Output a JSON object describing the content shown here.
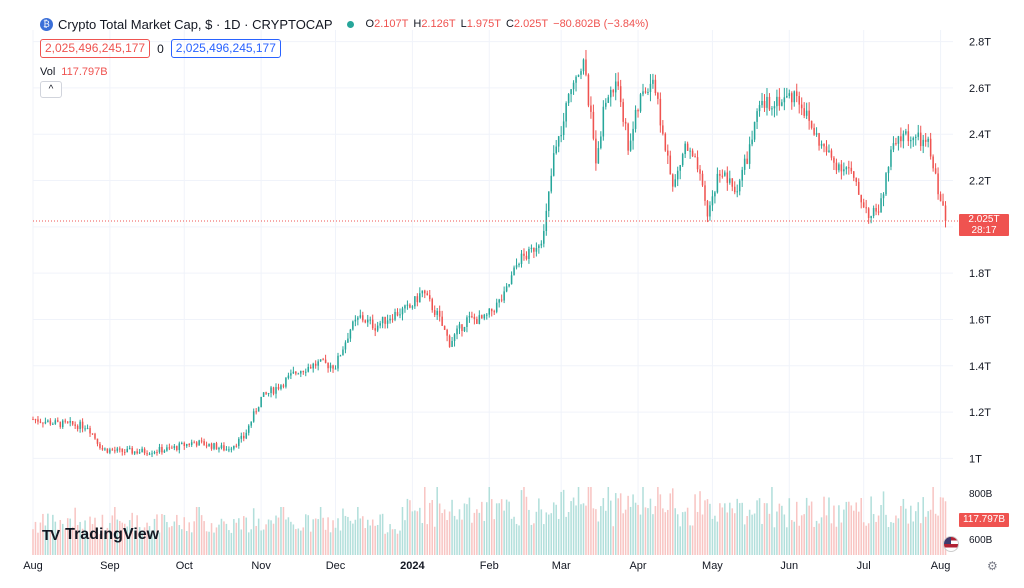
{
  "header": {
    "icon": "crypto-coin-icon",
    "title": "Crypto Total Market Cap, $ · 1D · CRYPTOCAP",
    "ohlc": [
      {
        "k": "O",
        "v": "2.107T"
      },
      {
        "k": "H",
        "v": "2.126T"
      },
      {
        "k": "L",
        "v": "1.975T"
      },
      {
        "k": "C",
        "v": "2.025T"
      },
      {
        "k": "",
        "v": "−80.802B (−3.84%)"
      }
    ],
    "box_left": "2,025,496,245,177",
    "box_mid": "0",
    "box_right": "2,025,496,245,177",
    "vol_label": "Vol",
    "vol_value": "117.797B",
    "collapse_icon": "^"
  },
  "branding": {
    "logo_mark": "TV",
    "logo_text": "TradingView"
  },
  "price_tag": {
    "price": "2.025T",
    "countdown": "28:17"
  },
  "volume_tag": "117.797B",
  "colors": {
    "up": "#26a69a",
    "down": "#ef5350",
    "grid": "#f0f3fa",
    "axis_text": "#131722",
    "last_line": "#ef5350"
  },
  "chart_data": {
    "type": "candlestick",
    "y_axis": {
      "ticks": [
        1.2,
        1.4,
        1.6,
        1.8,
        2.0,
        2.2,
        2.4,
        2.6,
        2.8
      ],
      "labels": {
        "1.0": "1T",
        "1.2": "1.2T",
        "1.4": "1.4T",
        "1.6": "1.6T",
        "1.8": "1.8T",
        "2.2": "2.2T",
        "2.4": "2.4T",
        "2.6": "2.6T",
        "2.8": "2.8T"
      },
      "range": [
        0.95,
        2.85
      ],
      "unit": "T"
    },
    "y_labels": [
      "1T",
      "1.2T",
      "1.4T",
      "1.6T",
      "1.8T",
      "2.2T",
      "2.4T",
      "2.6T",
      "2.8T"
    ],
    "volume_axis_labels": [
      "800B",
      "600B"
    ],
    "x_labels": [
      {
        "label": "Aug",
        "day": 0
      },
      {
        "label": "Sep",
        "day": 31
      },
      {
        "label": "Oct",
        "day": 61
      },
      {
        "label": "Nov",
        "day": 92
      },
      {
        "label": "Dec",
        "day": 122
      },
      {
        "label": "2024",
        "day": 153,
        "bold": true
      },
      {
        "label": "Feb",
        "day": 184
      },
      {
        "label": "Mar",
        "day": 213
      },
      {
        "label": "Apr",
        "day": 244
      },
      {
        "label": "May",
        "day": 274
      },
      {
        "label": "Jun",
        "day": 305
      },
      {
        "label": "Jul",
        "day": 335
      },
      {
        "label": "Aug",
        "day": 366
      }
    ],
    "last_price": 2.025,
    "close_path": [
      [
        0,
        1.17
      ],
      [
        10,
        1.15
      ],
      [
        22,
        1.14
      ],
      [
        28,
        1.04
      ],
      [
        35,
        1.03
      ],
      [
        45,
        1.03
      ],
      [
        55,
        1.04
      ],
      [
        65,
        1.07
      ],
      [
        70,
        1.06
      ],
      [
        78,
        1.04
      ],
      [
        85,
        1.09
      ],
      [
        92,
        1.26
      ],
      [
        100,
        1.32
      ],
      [
        107,
        1.38
      ],
      [
        115,
        1.41
      ],
      [
        122,
        1.4
      ],
      [
        128,
        1.56
      ],
      [
        132,
        1.61
      ],
      [
        138,
        1.57
      ],
      [
        145,
        1.62
      ],
      [
        152,
        1.65
      ],
      [
        157,
        1.72
      ],
      [
        163,
        1.62
      ],
      [
        168,
        1.5
      ],
      [
        175,
        1.6
      ],
      [
        182,
        1.6
      ],
      [
        190,
        1.7
      ],
      [
        196,
        1.86
      ],
      [
        200,
        1.88
      ],
      [
        206,
        1.97
      ],
      [
        210,
        2.3
      ],
      [
        214,
        2.45
      ],
      [
        218,
        2.65
      ],
      [
        222,
        2.71
      ],
      [
        227,
        2.3
      ],
      [
        231,
        2.55
      ],
      [
        236,
        2.62
      ],
      [
        240,
        2.35
      ],
      [
        245,
        2.55
      ],
      [
        250,
        2.65
      ],
      [
        254,
        2.4
      ],
      [
        258,
        2.16
      ],
      [
        263,
        2.35
      ],
      [
        268,
        2.25
      ],
      [
        272,
        2.05
      ],
      [
        277,
        2.25
      ],
      [
        283,
        2.15
      ],
      [
        288,
        2.3
      ],
      [
        293,
        2.51
      ],
      [
        299,
        2.55
      ],
      [
        303,
        2.55
      ],
      [
        308,
        2.58
      ],
      [
        313,
        2.45
      ],
      [
        318,
        2.35
      ],
      [
        323,
        2.28
      ],
      [
        329,
        2.25
      ],
      [
        333,
        2.14
      ],
      [
        338,
        2.04
      ],
      [
        342,
        2.1
      ],
      [
        346,
        2.32
      ],
      [
        351,
        2.4
      ],
      [
        356,
        2.38
      ],
      [
        361,
        2.35
      ],
      [
        366,
        2.12
      ],
      [
        368,
        2.025
      ]
    ]
  }
}
